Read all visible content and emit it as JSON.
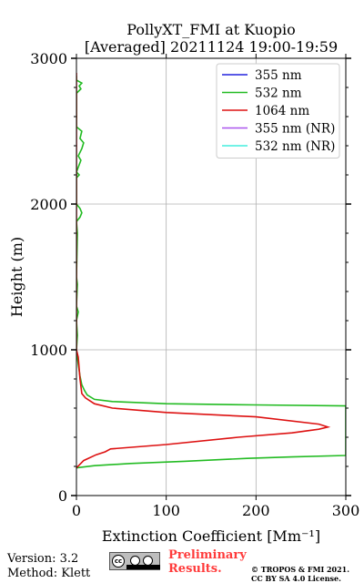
{
  "chart_data": {
    "type": "line",
    "title": "PollyXT_FMI at Kuopio",
    "subtitle": "[Averaged] 20211124 19:00-19:59",
    "xlabel": "Extinction Coefficient [Mm⁻¹]",
    "ylabel": "Height (m)",
    "xlim": [
      0,
      300
    ],
    "ylim": [
      0,
      3000
    ],
    "x_ticks": [
      "0",
      "100",
      "200",
      "300"
    ],
    "y_ticks": [
      "0",
      "1000",
      "2000",
      "3000"
    ],
    "grid": true,
    "legend_position": "top-right",
    "series": [
      {
        "name": "355 nm",
        "color": "#2222dd",
        "points": []
      },
      {
        "name": "532 nm",
        "color": "#22bb22",
        "points": [
          [
            0,
            190
          ],
          [
            20,
            205
          ],
          [
            60,
            220
          ],
          [
            120,
            235
          ],
          [
            190,
            255
          ],
          [
            240,
            265
          ],
          [
            300,
            275
          ],
          [
            300,
            615
          ],
          [
            200,
            622
          ],
          [
            100,
            630
          ],
          [
            40,
            645
          ],
          [
            20,
            660
          ],
          [
            12,
            690
          ],
          [
            9,
            720
          ],
          [
            6,
            760
          ],
          [
            4,
            820
          ],
          [
            2,
            900
          ],
          [
            0,
            1000
          ],
          [
            1,
            1100
          ],
          [
            0,
            1200
          ],
          [
            2,
            1260
          ],
          [
            0,
            1300
          ],
          [
            1,
            1450
          ],
          [
            0,
            1500
          ],
          [
            1,
            1800
          ],
          [
            0,
            1880
          ],
          [
            4,
            1910
          ],
          [
            6,
            1940
          ],
          [
            4,
            1970
          ],
          [
            0,
            2000
          ],
          [
            0,
            2180
          ],
          [
            3,
            2200
          ],
          [
            0,
            2220
          ],
          [
            5,
            2300
          ],
          [
            2,
            2330
          ],
          [
            6,
            2380
          ],
          [
            8,
            2420
          ],
          [
            4,
            2450
          ],
          [
            6,
            2500
          ],
          [
            0,
            2530
          ],
          [
            0,
            2760
          ],
          [
            5,
            2790
          ],
          [
            3,
            2810
          ],
          [
            6,
            2830
          ],
          [
            0,
            2850
          ],
          [
            0,
            2880
          ]
        ]
      },
      {
        "name": "1064 nm",
        "color": "#dd1111",
        "points": [
          [
            0,
            190
          ],
          [
            8,
            240
          ],
          [
            22,
            280
          ],
          [
            32,
            300
          ],
          [
            38,
            320
          ],
          [
            100,
            350
          ],
          [
            180,
            400
          ],
          [
            240,
            430
          ],
          [
            270,
            455
          ],
          [
            280,
            470
          ],
          [
            270,
            490
          ],
          [
            200,
            540
          ],
          [
            100,
            570
          ],
          [
            40,
            600
          ],
          [
            20,
            630
          ],
          [
            10,
            670
          ],
          [
            6,
            700
          ],
          [
            4,
            800
          ],
          [
            2,
            950
          ],
          [
            0,
            1000
          ],
          [
            0,
            1300
          ],
          [
            0,
            1500
          ],
          [
            0,
            2000
          ],
          [
            0,
            2500
          ],
          [
            0,
            2900
          ]
        ]
      },
      {
        "name": "355 nm (NR)",
        "color": "#aa55ee",
        "points": []
      },
      {
        "name": "532 nm (NR)",
        "color": "#44eedd",
        "points": []
      }
    ]
  },
  "footer": {
    "version": "Version: 3.2",
    "method": "Method: Klett",
    "preliminary_line1": "Preliminary",
    "preliminary_line2": "Results.",
    "copyright_line1": "© TROPOS & FMI 2021.",
    "copyright_line2": "CC BY SA 4.0 License."
  }
}
